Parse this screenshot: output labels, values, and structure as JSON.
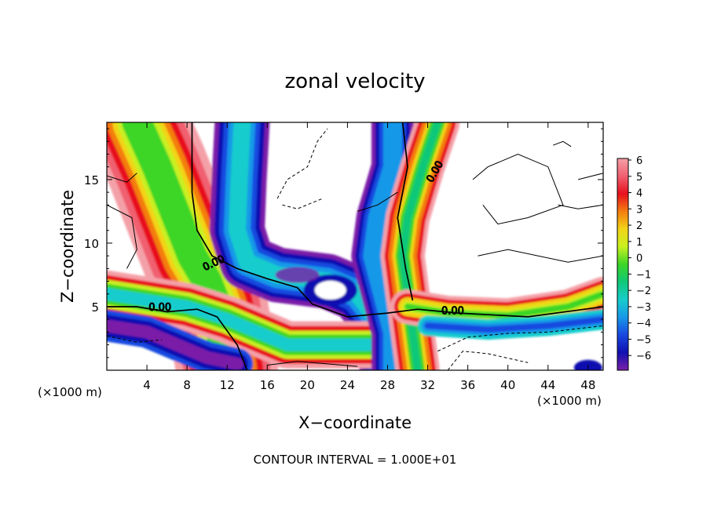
{
  "chart_data": {
    "type": "heatmap",
    "title": "zonal velocity",
    "xlabel": "X−coordinate",
    "ylabel": "Z−coordinate",
    "x_unit_label": "(×1000 m)",
    "x_unit_label_right": "(×1000 m)",
    "footer": "CONTOUR INTERVAL = 1.000E+01",
    "xlim": [
      0,
      49.5
    ],
    "ylim": [
      0,
      19.5
    ],
    "x_ticks": [
      4,
      8,
      12,
      16,
      20,
      24,
      28,
      32,
      36,
      40,
      44,
      48
    ],
    "y_ticks": [
      5,
      10,
      15
    ],
    "colorbar": {
      "values": [
        6,
        5,
        4,
        3,
        2,
        1,
        0,
        -1,
        -2,
        -3,
        -4,
        -5,
        -6
      ],
      "labels": [
        "6",
        "5",
        "4",
        "3",
        "2",
        "1",
        "0",
        "−1",
        "−2",
        "−3",
        "−4",
        "−5",
        "−6"
      ],
      "colors": [
        "#f4a0a8",
        "#f06070",
        "#e8101e",
        "#f47d10",
        "#f2d418",
        "#c8f020",
        "#3cd628",
        "#10c878",
        "#18cccc",
        "#1898e8",
        "#1848e0",
        "#1010b0",
        "#7a1fa8"
      ]
    },
    "contour_labels": [
      "0.00",
      "0.00",
      "0.00",
      "0.00"
    ]
  }
}
